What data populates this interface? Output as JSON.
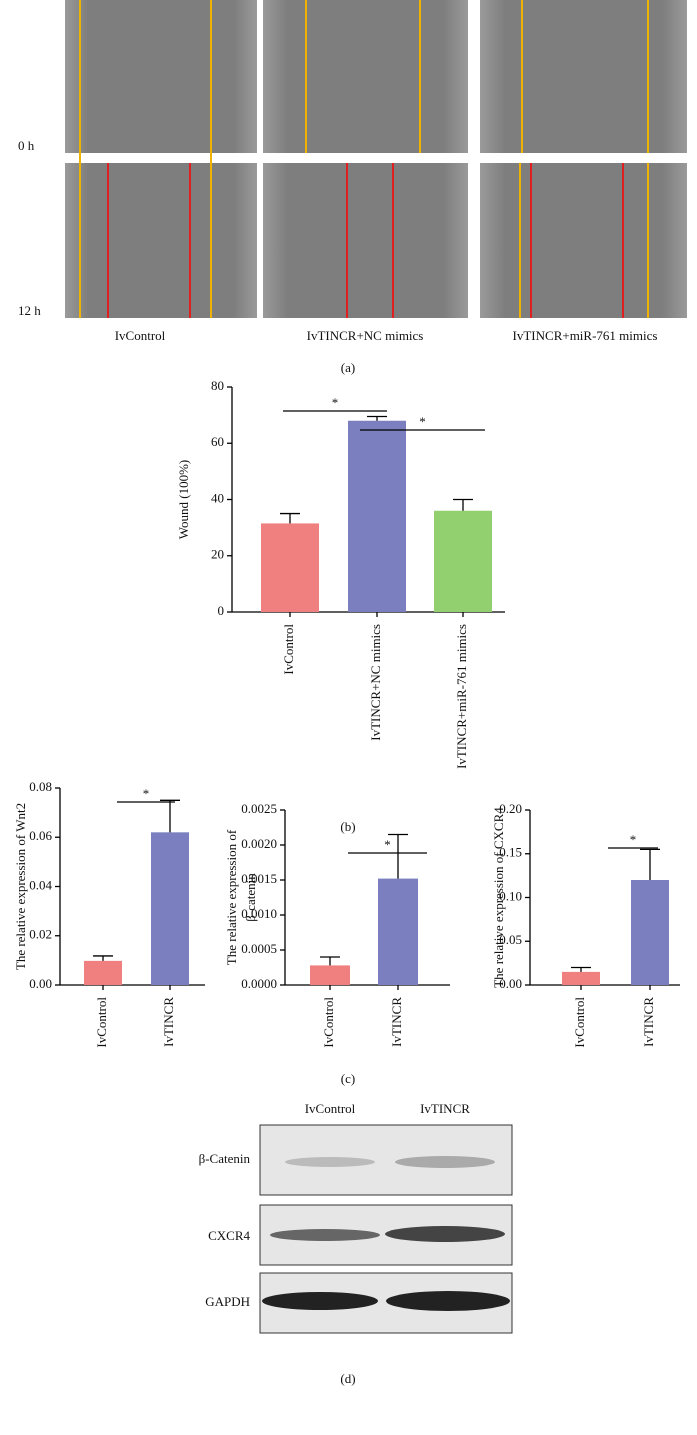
{
  "panel_a": {
    "rows": [
      "0 h",
      "12 h"
    ],
    "columns": [
      "IvControl",
      "IvTINCR+NC mimics",
      "IvTINCR+miR-761 mimics"
    ],
    "caption": "(a)"
  },
  "panel_d": {
    "columns": [
      "IvControl",
      "IvTINCR"
    ],
    "rows": [
      "β-Catenin",
      "CXCR4",
      "GAPDH"
    ],
    "caption": "(d)"
  },
  "captions": {
    "b": "(b)",
    "c": "(c)"
  },
  "chart_data": [
    {
      "type": "bar",
      "ylabel": [
        "Wound (100%)"
      ],
      "categories": [
        "IvControl",
        "IvTINCR+NC mimics",
        "IvTINCR+miR-761 mimics"
      ],
      "values": [
        31.5,
        68,
        36
      ],
      "errors": [
        3.5,
        1.5,
        4
      ],
      "colors": [
        "#f08080",
        "#7b7fbf",
        "#92d06f"
      ],
      "ylim": [
        0,
        80
      ],
      "yticks": [
        0,
        20,
        40,
        60,
        80
      ],
      "annotations": [
        "*",
        "*"
      ]
    },
    {
      "type": "bar",
      "ylabel": [
        "The relative expression of Wnt2"
      ],
      "categories": [
        "IvControl",
        "IvTINCR"
      ],
      "values": [
        0.0098,
        0.062
      ],
      "errors": [
        0.002,
        0.013
      ],
      "colors": [
        "#f08080",
        "#7b7fbf"
      ],
      "ylim": [
        0,
        0.08
      ],
      "yticks": [
        {
          "value": 0,
          "label": "0.00"
        },
        {
          "value": 0.02,
          "label": "0.02"
        },
        {
          "value": 0.04,
          "label": "0.04"
        },
        {
          "value": 0.06,
          "label": "0.06"
        },
        {
          "value": 0.08,
          "label": "0.08"
        }
      ],
      "annotations": [
        "*"
      ]
    },
    {
      "type": "bar",
      "ylabel": [
        "The relative expression of",
        "β-catenin"
      ],
      "categories": [
        "IvControl",
        "IvTINCR"
      ],
      "values": [
        0.00028,
        0.00152
      ],
      "errors": [
        0.00012,
        0.00063
      ],
      "colors": [
        "#f08080",
        "#7b7fbf"
      ],
      "ylim": [
        0,
        0.0025
      ],
      "yticks": [
        {
          "value": 0,
          "label": "0.0000"
        },
        {
          "value": 0.0005,
          "label": "0.0005"
        },
        {
          "value": 0.001,
          "label": "0.0010"
        },
        {
          "value": 0.0015,
          "label": "0.0015"
        },
        {
          "value": 0.002,
          "label": "0.0020"
        },
        {
          "value": 0.0025,
          "label": "0.0025"
        }
      ],
      "annotations": [
        "*"
      ]
    },
    {
      "type": "bar",
      "ylabel": [
        "The relative expression of CXCR4"
      ],
      "categories": [
        "IvControl",
        "IvTINCR"
      ],
      "values": [
        0.015,
        0.12
      ],
      "errors": [
        0.005,
        0.035
      ],
      "colors": [
        "#f08080",
        "#7b7fbf"
      ],
      "ylim": [
        0,
        0.2
      ],
      "yticks": [
        {
          "value": 0,
          "label": "0.00"
        },
        {
          "value": 0.05,
          "label": "0.05"
        },
        {
          "value": 0.1,
          "label": "0.10"
        },
        {
          "value": 0.15,
          "label": "0.15"
        },
        {
          "value": 0.2,
          "label": "0.20"
        }
      ],
      "annotations": [
        "*"
      ]
    }
  ]
}
